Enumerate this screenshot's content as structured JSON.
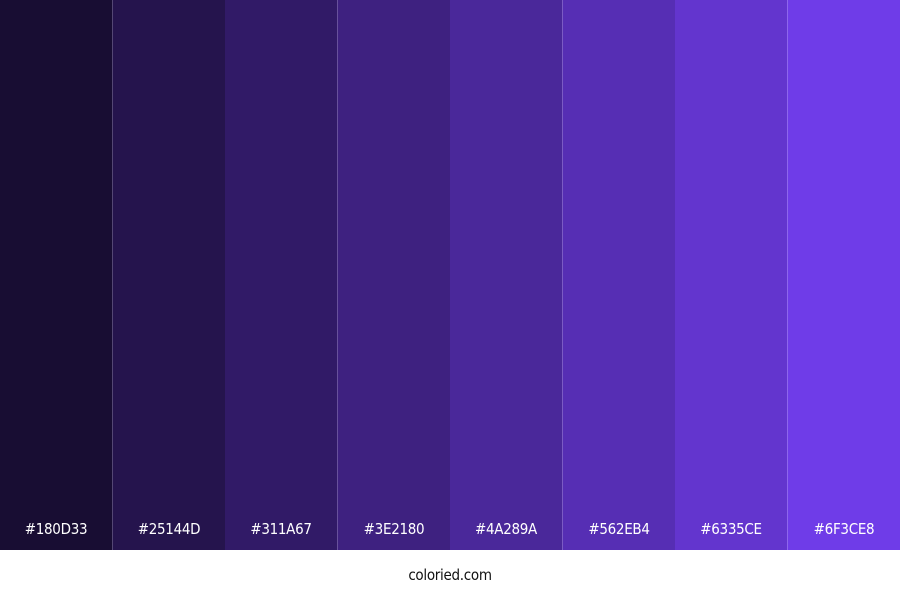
{
  "swatches": [
    {
      "label": "#180D33",
      "color": "#180D33"
    },
    {
      "label": "#25144D",
      "color": "#25144D"
    },
    {
      "label": "#311A67",
      "color": "#311A67"
    },
    {
      "label": "#3E2180",
      "color": "#3E2180"
    },
    {
      "label": "#4A289A",
      "color": "#4A289A"
    },
    {
      "label": "#562EB4",
      "color": "#562EB4"
    },
    {
      "label": "#6335CE",
      "color": "#6335CE"
    },
    {
      "label": "#6F3CE8",
      "color": "#6F3CE8"
    }
  ],
  "footer": {
    "text": "coloried.com"
  }
}
